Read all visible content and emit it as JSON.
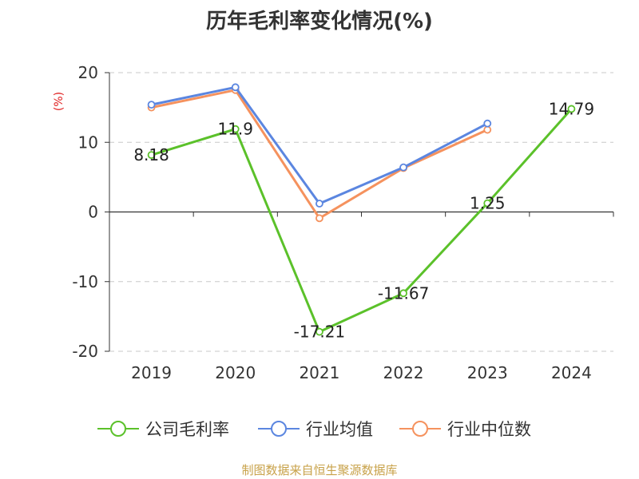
{
  "chart_data": {
    "type": "line",
    "title": "历年毛利率变化情况(%)",
    "ylabel": "(%)",
    "categories": [
      "2019",
      "2020",
      "2021",
      "2022",
      "2023",
      "2024"
    ],
    "ylim": [
      -20,
      20
    ],
    "yticks": [
      "20",
      "10",
      "0",
      "-10",
      "-20"
    ],
    "grid": true,
    "legend_position": "bottom",
    "series": [
      {
        "name": "公司毛利率",
        "color": "#5bc12a",
        "values": [
          8.18,
          11.9,
          -17.21,
          -11.67,
          1.25,
          14.79
        ],
        "labels": [
          "8.18",
          "11.9",
          "-17.21",
          "-11.67",
          "1.25",
          "14.79"
        ]
      },
      {
        "name": "行业均值",
        "color": "#5b86e0",
        "values": [
          15.4,
          17.9,
          1.2,
          6.4,
          12.7,
          null
        ]
      },
      {
        "name": "行业中位数",
        "color": "#f5925e",
        "values": [
          15.0,
          17.5,
          -0.9,
          6.3,
          11.8,
          null
        ]
      }
    ]
  },
  "source_note": "制图数据来自恒生聚源数据库"
}
